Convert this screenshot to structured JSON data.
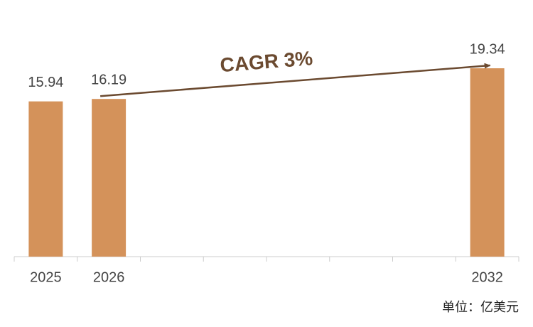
{
  "chart_data": {
    "type": "bar",
    "categories": [
      "2025",
      "2026",
      null,
      null,
      null,
      null,
      null,
      "2032"
    ],
    "values": [
      15.94,
      16.19,
      null,
      null,
      null,
      null,
      null,
      19.34
    ],
    "color": "#d4925a",
    "ylim": [
      0,
      20
    ],
    "annotation": "CAGR 3%",
    "annotation_color": "#6b4a30",
    "unit_label": "单位：亿美元"
  }
}
